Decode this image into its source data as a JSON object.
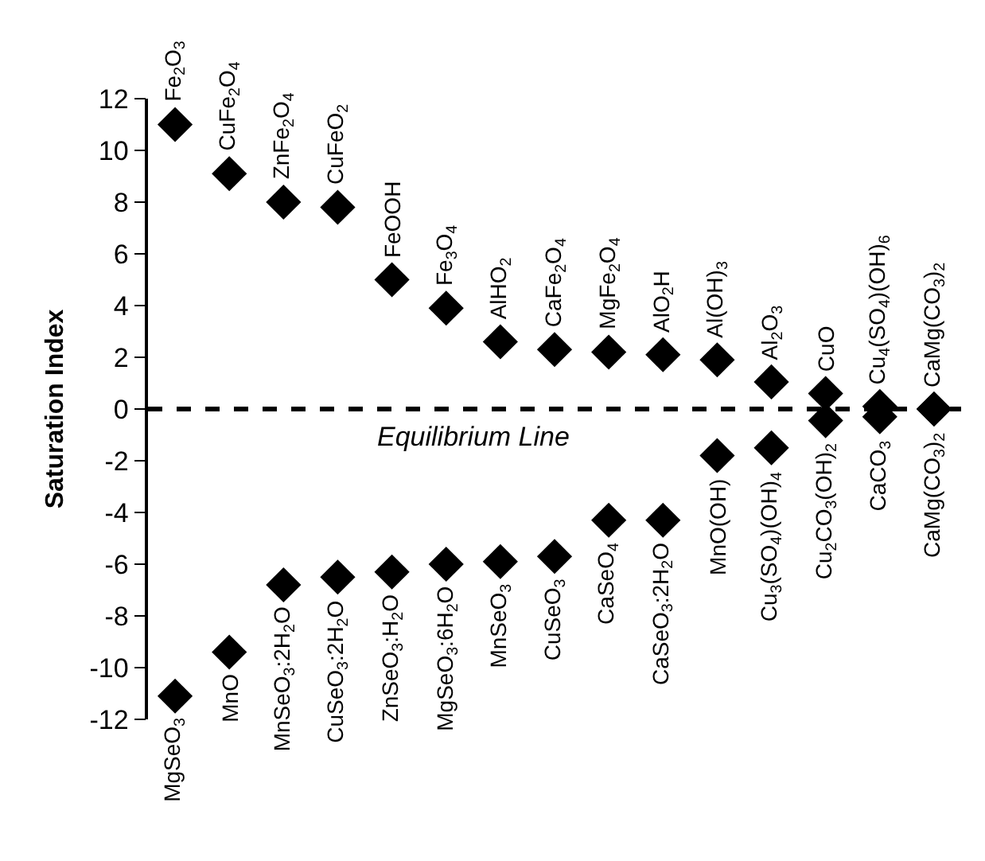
{
  "chart_data": {
    "type": "scatter",
    "ylabel": "Saturation Index",
    "categories": [
      null,
      null,
      null,
      null,
      null,
      null,
      null,
      null,
      null,
      null,
      null,
      null,
      null,
      null,
      null
    ],
    "series": [
      {
        "name": "Fe$_{2}$O$_{3}$",
        "color": "#000000",
        "values": [
          11.0,
          null,
          null,
          null,
          null,
          null,
          null,
          null,
          null,
          null,
          null,
          null,
          null,
          null,
          null
        ]
      },
      {
        "name": "CuFe$_{2}$O$_{4}$",
        "color": "#000000",
        "values": [
          null,
          9.1,
          null,
          null,
          null,
          null,
          null,
          null,
          null,
          null,
          null,
          null,
          null,
          null,
          null
        ]
      },
      {
        "name": "ZnFe$_{2}$O$_{4}$",
        "color": "#000000",
        "values": [
          null,
          null,
          8.0,
          null,
          null,
          null,
          null,
          null,
          null,
          null,
          null,
          null,
          null,
          null,
          null
        ]
      },
      {
        "name": "CuFeO$_{2}$",
        "color": "#000000",
        "values": [
          null,
          null,
          null,
          7.8,
          null,
          null,
          null,
          null,
          null,
          null,
          null,
          null,
          null,
          null,
          null
        ]
      },
      {
        "name": "FeOOH",
        "color": "#000000",
        "values": [
          null,
          null,
          null,
          null,
          5.0,
          null,
          null,
          null,
          null,
          null,
          null,
          null,
          null,
          null,
          null
        ]
      },
      {
        "name": "Fe$_{3}$O$_{4}$",
        "color": "#000000",
        "values": [
          null,
          null,
          null,
          null,
          null,
          3.9,
          null,
          null,
          null,
          null,
          null,
          null,
          null,
          null,
          null
        ]
      },
      {
        "name": "AlHO$_{2}$",
        "color": "#000000",
        "values": [
          null,
          null,
          null,
          null,
          null,
          null,
          2.6,
          null,
          null,
          null,
          null,
          null,
          null,
          null,
          null
        ]
      },
      {
        "name": "CaFe$_{2}$O$_{4}$",
        "color": "#000000",
        "values": [
          null,
          null,
          null,
          null,
          null,
          null,
          null,
          2.3,
          null,
          null,
          null,
          null,
          null,
          null,
          null
        ]
      },
      {
        "name": "MgFe$_{2}$O$_{4}$",
        "color": "#000000",
        "values": [
          null,
          null,
          null,
          null,
          null,
          null,
          null,
          null,
          2.2,
          null,
          null,
          null,
          null,
          null,
          null
        ]
      },
      {
        "name": "AlO$_{2}$H",
        "color": "#000000",
        "values": [
          null,
          null,
          null,
          null,
          null,
          null,
          null,
          null,
          null,
          2.1,
          null,
          null,
          null,
          null,
          null
        ]
      },
      {
        "name": "Al(OH)$_{3}$",
        "color": "#000000",
        "values": [
          null,
          null,
          null,
          null,
          null,
          null,
          null,
          null,
          null,
          null,
          1.9,
          null,
          null,
          null,
          null
        ]
      },
      {
        "name": "Al$_{2}$O$_{3}$",
        "color": "#000000",
        "values": [
          null,
          null,
          null,
          null,
          null,
          null,
          null,
          null,
          null,
          null,
          null,
          1.05,
          null,
          null,
          null
        ]
      },
      {
        "name": "CuO",
        "color": "#000000",
        "values": [
          null,
          null,
          null,
          null,
          null,
          null,
          null,
          null,
          null,
          null,
          null,
          null,
          0.6,
          null,
          null
        ]
      },
      {
        "name": "Cu$_{4}$(SO$_{4}$)(OH)$_{6}$",
        "color": "#000000",
        "values": [
          null,
          null,
          null,
          null,
          null,
          null,
          null,
          null,
          null,
          null,
          null,
          null,
          null,
          0.1,
          null
        ]
      },
      {
        "name": "CaMg(CO$_{3}$)$_{2}$",
        "color": "#000000",
        "values": [
          null,
          null,
          null,
          null,
          null,
          null,
          null,
          null,
          null,
          null,
          null,
          null,
          null,
          null,
          0.0
        ]
      },
      {
        "name": "MgSeO$_{3}$",
        "color": "#000000",
        "values": [
          -11.1,
          null,
          null,
          null,
          null,
          null,
          null,
          null,
          null,
          null,
          null,
          null,
          null,
          null,
          null
        ]
      },
      {
        "name": "MnO",
        "color": "#000000",
        "values": [
          null,
          -9.4,
          null,
          null,
          null,
          null,
          null,
          null,
          null,
          null,
          null,
          null,
          null,
          null,
          null
        ]
      },
      {
        "name": "MnSeO$_{3}$:2H$_{2}$O",
        "color": "#000000",
        "values": [
          null,
          null,
          -6.8,
          null,
          null,
          null,
          null,
          null,
          null,
          null,
          null,
          null,
          null,
          null,
          null
        ]
      },
      {
        "name": "CuSeO$_{3}$:2H$_{2}$O",
        "color": "#000000",
        "values": [
          null,
          null,
          null,
          -6.5,
          null,
          null,
          null,
          null,
          null,
          null,
          null,
          null,
          null,
          null,
          null
        ]
      },
      {
        "name": "ZnSeO$_{3}$:H$_{2}$O",
        "color": "#000000",
        "values": [
          null,
          null,
          null,
          null,
          -6.3,
          null,
          null,
          null,
          null,
          null,
          null,
          null,
          null,
          null,
          null
        ]
      },
      {
        "name": "MgSeO$_{3}$:6H$_{2}$O",
        "color": "#000000",
        "values": [
          null,
          null,
          null,
          null,
          null,
          -6.0,
          null,
          null,
          null,
          null,
          null,
          null,
          null,
          null,
          null
        ]
      },
      {
        "name": "MnSeO$_{3}$",
        "color": "#000000",
        "values": [
          null,
          null,
          null,
          null,
          null,
          null,
          -5.9,
          null,
          null,
          null,
          null,
          null,
          null,
          null,
          null
        ]
      },
      {
        "name": "CuSeO$_{3}$",
        "color": "#000000",
        "values": [
          null,
          null,
          null,
          null,
          null,
          null,
          null,
          -5.7,
          null,
          null,
          null,
          null,
          null,
          null,
          null
        ]
      },
      {
        "name": "CaSeO$_{4}$",
        "color": "#000000",
        "values": [
          null,
          null,
          null,
          null,
          null,
          null,
          null,
          null,
          -4.3,
          null,
          null,
          null,
          null,
          null,
          null
        ]
      },
      {
        "name": "CaSeO$_{3}$:2H$_{2}$O",
        "color": "#000000",
        "values": [
          null,
          null,
          null,
          null,
          null,
          null,
          null,
          null,
          null,
          -4.3,
          null,
          null,
          null,
          null,
          null
        ]
      },
      {
        "name": "MnO(OH)",
        "color": "#000000",
        "values": [
          null,
          null,
          null,
          null,
          null,
          null,
          null,
          null,
          null,
          null,
          -1.8,
          null,
          null,
          null,
          null
        ]
      },
      {
        "name": "Cu$_{3}$(SO$_{4}$)(OH)$_{4}$",
        "color": "#000000",
        "values": [
          null,
          null,
          null,
          null,
          null,
          null,
          null,
          null,
          null,
          null,
          null,
          -1.5,
          null,
          null,
          null
        ]
      },
      {
        "name": "Cu$_{2}$CO$_{3}$(OH)$_{2}$",
        "color": "#000000",
        "values": [
          null,
          null,
          null,
          null,
          null,
          null,
          null,
          null,
          null,
          null,
          null,
          null,
          -0.45,
          null,
          null
        ]
      },
      {
        "name": "CaCO$_{3}$",
        "color": "#000000",
        "values": [
          null,
          null,
          null,
          null,
          null,
          null,
          null,
          null,
          null,
          null,
          null,
          null,
          null,
          -0.3,
          null
        ]
      },
      {
        "name": "CaMg(CO$_{3}$)$_{2}$",
        "color": "#000000",
        "values": [
          null,
          null,
          null,
          null,
          null,
          null,
          null,
          null,
          null,
          null,
          null,
          null,
          null,
          null,
          0.0
        ]
      }
    ],
    "ylim": [
      -12,
      12
    ],
    "yticks": [
      -12,
      -10,
      -8,
      -6,
      -4,
      -2,
      0,
      2,
      4,
      6,
      8,
      10,
      12
    ],
    "ref_lines": [
      {
        "axis": "y",
        "value": 0,
        "label": "Equilibrium Line",
        "color": "#000000",
        "line_style": "dashed"
      }
    ],
    "marker": "diamond",
    "grid": false,
    "legend": false
  }
}
